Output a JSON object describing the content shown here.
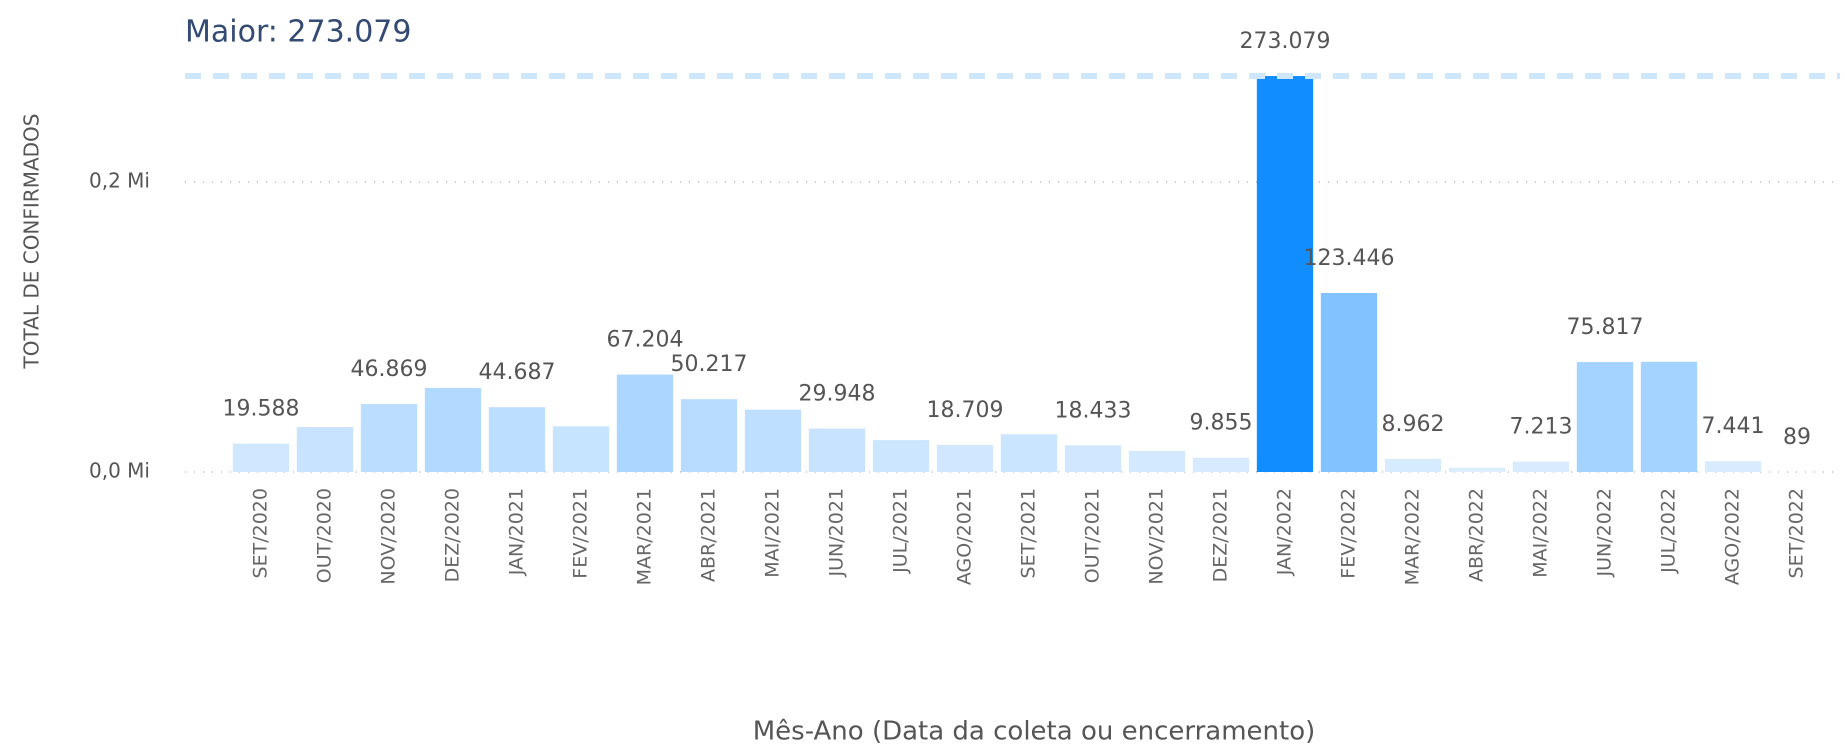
{
  "chart_data": {
    "type": "bar",
    "reference_line": {
      "label": "Maior: 273.079",
      "value": 273079,
      "color": "#cfe6ff"
    },
    "x_label": "Mês-Ano (Data da coleta ou encerramento)",
    "y_label": "TOTAL DE CONFIRMADOS",
    "categories": [
      "SET/2020",
      "OUT/2020",
      "NOV/2020",
      "DEZ/2020",
      "JAN/2021",
      "FEV/2021",
      "MAR/2021",
      "ABR/2021",
      "MAI/2021",
      "JUN/2021",
      "JUL/2021",
      "AGO/2021",
      "SET/2021",
      "OUT/2021",
      "NOV/2021",
      "DEZ/2021",
      "JAN/2022",
      "FEV/2022",
      "MAR/2022",
      "ABR/2022",
      "MAI/2022",
      "JUN/2022",
      "JUL/2022",
      "AGO/2022",
      "SET/2022"
    ],
    "values": [
      19588,
      31000,
      46869,
      58000,
      44687,
      31500,
      67204,
      50217,
      43000,
      29948,
      22000,
      18709,
      26000,
      18433,
      14500,
      9855,
      273079,
      123446,
      8962,
      3000,
      7213,
      75817,
      76000,
      7441,
      89
    ],
    "value_labels": [
      "19.588",
      null,
      "46.869",
      null,
      "44.687",
      null,
      "67.204",
      "50.217",
      null,
      "29.948",
      null,
      "18.709",
      null,
      "18.433",
      null,
      "9.855",
      "273.079",
      "123.446",
      "8.962",
      null,
      "7.213",
      "75.817",
      null,
      "7.441",
      "89"
    ],
    "color_min": "#deeeff",
    "color_max": "#118dff",
    "ylim": [
      0,
      300000
    ],
    "yticks": [
      {
        "value": 0,
        "label": "0,0 Mi"
      },
      {
        "value": 200000,
        "label": "0,2 Mi"
      }
    ],
    "grid": true
  }
}
